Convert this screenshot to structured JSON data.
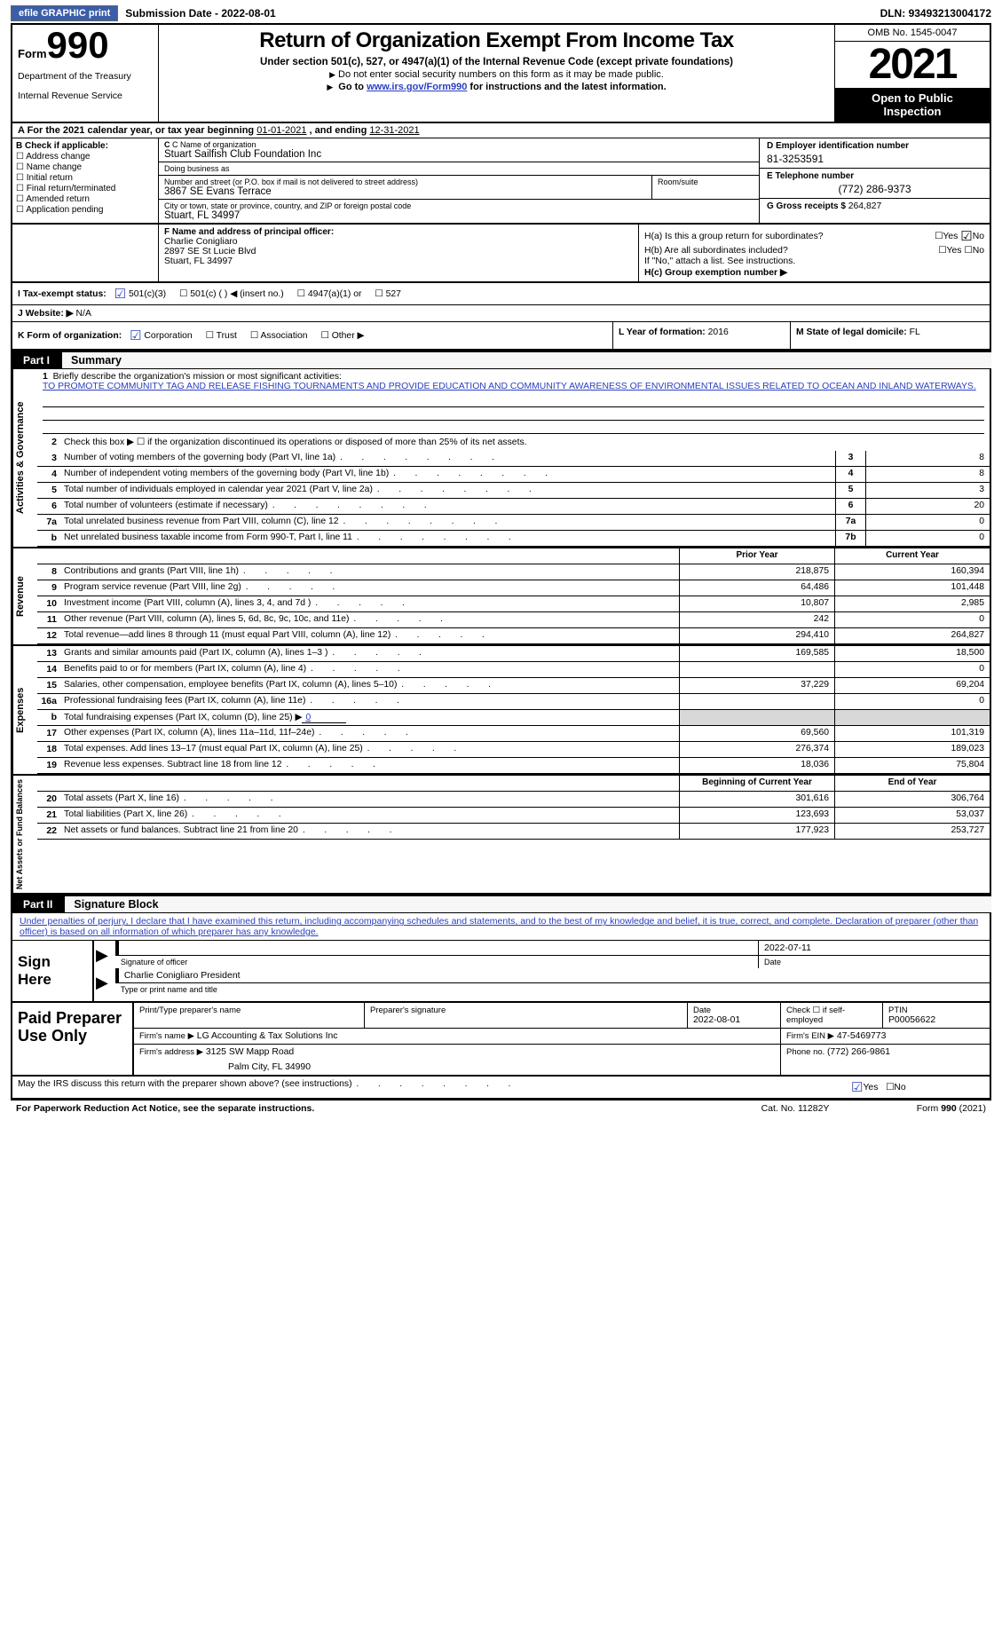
{
  "topbar": {
    "efile_btn": "efile GRAPHIC print",
    "subdate_lbl": "Submission Date - ",
    "subdate": "2022-08-01",
    "dln_lbl": "DLN: ",
    "dln": "93493213004172"
  },
  "header": {
    "form_word": "Form",
    "form_num": "990",
    "dept1": "Department of the Treasury",
    "dept2": "Internal Revenue Service",
    "title": "Return of Organization Exempt From Income Tax",
    "sub1": "Under section 501(c), 527, or 4947(a)(1) of the Internal Revenue Code (except private foundations)",
    "sub2": "Do not enter social security numbers on this form as it may be made public.",
    "sub3_pre": "Go to ",
    "sub3_link": "www.irs.gov/Form990",
    "sub3_post": " for instructions and the latest information.",
    "omb": "OMB No. 1545-0047",
    "year": "2021",
    "open1": "Open to Public",
    "open2": "Inspection"
  },
  "calrow": {
    "pre": "A For the 2021 calendar year, or tax year beginning ",
    "begin": "01-01-2021",
    "mid": "   , and ending ",
    "end": "12-31-2021"
  },
  "entity": {
    "b_lbl": "B Check if applicable:",
    "b_items": [
      "Address change",
      "Name change",
      "Initial return",
      "Final return/terminated",
      "Amended return",
      "Application pending"
    ],
    "c_name_lbl": "C Name of organization",
    "c_name": "Stuart Sailfish Club Foundation Inc",
    "dba_lbl": "Doing business as",
    "dba": "",
    "addr_lbl": "Number and street (or P.O. box if mail is not delivered to street address)",
    "addr": "3867 SE Evans Terrace",
    "room_lbl": "Room/suite",
    "city_lbl": "City or town, state or province, country, and ZIP or foreign postal code",
    "city": "Stuart, FL  34997",
    "d_lbl": "D Employer identification number",
    "d_val": "81-3253591",
    "e_lbl": "E Telephone number",
    "e_val": "(772) 286-9373",
    "g_lbl": "G Gross receipts $ ",
    "g_val": "264,827"
  },
  "fh": {
    "f_lbl": "F Name and address of principal officer:",
    "f_name": "Charlie Conigliaro",
    "f_addr1": "2897 SE St Lucie Blvd",
    "f_addr2": "Stuart, FL  34997",
    "ha_lbl": "H(a)  Is this a group return for subordinates?",
    "hb_lbl": "H(b)  Are all subordinates included?",
    "hb_note": "If \"No,\" attach a list. See instructions.",
    "hc_lbl": "H(c)  Group exemption number ▶",
    "yes": "Yes",
    "no": "No"
  },
  "ij": {
    "i_lbl": "I  Tax-exempt status:",
    "i_501c3": "501(c)(3)",
    "i_501c": "501(c) (  ) ◀ (insert no.)",
    "i_4947": "4947(a)(1) or",
    "i_527": "527",
    "j_lbl": "J  Website: ▶",
    "j_val": "  N/A"
  },
  "klm": {
    "k_lbl": "K Form of organization:",
    "k_corp": "Corporation",
    "k_trust": "Trust",
    "k_assoc": "Association",
    "k_other": "Other ▶",
    "l_lbl": "L Year of formation: ",
    "l_val": "2016",
    "m_lbl": "M State of legal domicile: ",
    "m_val": "FL"
  },
  "part1": {
    "num": "Part I",
    "title": "Summary"
  },
  "mission": {
    "lbl": "Briefly describe the organization's mission or most significant activities:",
    "txt": "TO PROMOTE COMMUNITY TAG AND RELEASE FISHING TOURNAMENTS AND PROVIDE EDUCATION AND COMMUNITY AWARENESS OF ENVIRONMENTAL ISSUES RELATED TO OCEAN AND INLAND WATERWAYS."
  },
  "line2": "Check this box ▶ ☐  if the organization discontinued its operations or disposed of more than 25% of its net assets.",
  "gov_rows": [
    {
      "n": "3",
      "d": "Number of voting members of the governing body (Part VI, line 1a)",
      "box": "3",
      "v": "8"
    },
    {
      "n": "4",
      "d": "Number of independent voting members of the governing body (Part VI, line 1b)",
      "box": "4",
      "v": "8"
    },
    {
      "n": "5",
      "d": "Total number of individuals employed in calendar year 2021 (Part V, line 2a)",
      "box": "5",
      "v": "3"
    },
    {
      "n": "6",
      "d": "Total number of volunteers (estimate if necessary)",
      "box": "6",
      "v": "20"
    },
    {
      "n": "7a",
      "d": "Total unrelated business revenue from Part VIII, column (C), line 12",
      "box": "7a",
      "v": "0"
    },
    {
      "n": "b",
      "d": "Net unrelated business taxable income from Form 990-T, Part I, line 11",
      "box": "7b",
      "v": "0"
    }
  ],
  "colhdr": {
    "prior": "Prior Year",
    "current": "Current Year"
  },
  "revenue": [
    {
      "n": "8",
      "d": "Contributions and grants (Part VIII, line 1h)",
      "p": "218,875",
      "c": "160,394"
    },
    {
      "n": "9",
      "d": "Program service revenue (Part VIII, line 2g)",
      "p": "64,486",
      "c": "101,448"
    },
    {
      "n": "10",
      "d": "Investment income (Part VIII, column (A), lines 3, 4, and 7d )",
      "p": "10,807",
      "c": "2,985"
    },
    {
      "n": "11",
      "d": "Other revenue (Part VIII, column (A), lines 5, 6d, 8c, 9c, 10c, and 11e)",
      "p": "242",
      "c": "0"
    },
    {
      "n": "12",
      "d": "Total revenue—add lines 8 through 11 (must equal Part VIII, column (A), line 12)",
      "p": "294,410",
      "c": "264,827"
    }
  ],
  "expenses": [
    {
      "n": "13",
      "d": "Grants and similar amounts paid (Part IX, column (A), lines 1–3 )",
      "p": "169,585",
      "c": "18,500"
    },
    {
      "n": "14",
      "d": "Benefits paid to or for members (Part IX, column (A), line 4)",
      "p": "",
      "c": "0"
    },
    {
      "n": "15",
      "d": "Salaries, other compensation, employee benefits (Part IX, column (A), lines 5–10)",
      "p": "37,229",
      "c": "69,204"
    },
    {
      "n": "16a",
      "d": "Professional fundraising fees (Part IX, column (A), line 11e)",
      "p": "",
      "c": "0"
    }
  ],
  "exp_b": {
    "n": "b",
    "d": "Total fundraising expenses (Part IX, column (D), line 25) ▶",
    "amt": "0"
  },
  "expenses2": [
    {
      "n": "17",
      "d": "Other expenses (Part IX, column (A), lines 11a–11d, 11f–24e)",
      "p": "69,560",
      "c": "101,319"
    },
    {
      "n": "18",
      "d": "Total expenses. Add lines 13–17 (must equal Part IX, column (A), line 25)",
      "p": "276,374",
      "c": "189,023"
    },
    {
      "n": "19",
      "d": "Revenue less expenses. Subtract line 18 from line 12",
      "p": "18,036",
      "c": "75,804"
    }
  ],
  "colhdr2": {
    "begin": "Beginning of Current Year",
    "end": "End of Year"
  },
  "netassets": [
    {
      "n": "20",
      "d": "Total assets (Part X, line 16)",
      "p": "301,616",
      "c": "306,764"
    },
    {
      "n": "21",
      "d": "Total liabilities (Part X, line 26)",
      "p": "123,693",
      "c": "53,037"
    },
    {
      "n": "22",
      "d": "Net assets or fund balances. Subtract line 21 from line 20",
      "p": "177,923",
      "c": "253,727"
    }
  ],
  "part2": {
    "num": "Part II",
    "title": "Signature Block"
  },
  "penalty": "Under penalties of perjury, I declare that I have examined this return, including accompanying schedules and statements, and to the best of my knowledge and belief, it is true, correct, and complete. Declaration of preparer (other than officer) is based on all information of which preparer has any knowledge.",
  "sign": {
    "here": "Sign Here",
    "sig_lbl": "Signature of officer",
    "date_lbl": "Date",
    "date": "2022-07-11",
    "name": "Charlie Conigliaro President",
    "name_lbl": "Type or print name and title"
  },
  "prep": {
    "lbl": "Paid Preparer Use Only",
    "r1": {
      "c1_lbl": "Print/Type preparer's name",
      "c2_lbl": "Preparer's signature",
      "c3_lbl": "Date",
      "c3_val": "2022-08-01",
      "c4_lbl": "Check ☐ if self-employed",
      "c5_lbl": "PTIN",
      "c5_val": "P00056622"
    },
    "r2": {
      "lbl": "Firm's name     ▶",
      "val": "LG Accounting & Tax Solutions Inc",
      "ein_lbl": "Firm's EIN ▶",
      "ein": "47-5469773"
    },
    "r3": {
      "lbl": "Firm's address ▶",
      "val1": "3125 SW Mapp Road",
      "val2": "Palm City, FL  34990",
      "ph_lbl": "Phone no. ",
      "ph": "(772) 266-9861"
    }
  },
  "discuss": {
    "q": "May the IRS discuss this return with the preparer shown above? (see instructions)",
    "yes": "Yes",
    "no": "No"
  },
  "footer": {
    "l": "For Paperwork Reduction Act Notice, see the separate instructions.",
    "c": "Cat. No. 11282Y",
    "r": "Form 990 (2021)"
  },
  "side": {
    "gov": "Activities & Governance",
    "rev": "Revenue",
    "exp": "Expenses",
    "net": "Net Assets or Fund Balances"
  }
}
